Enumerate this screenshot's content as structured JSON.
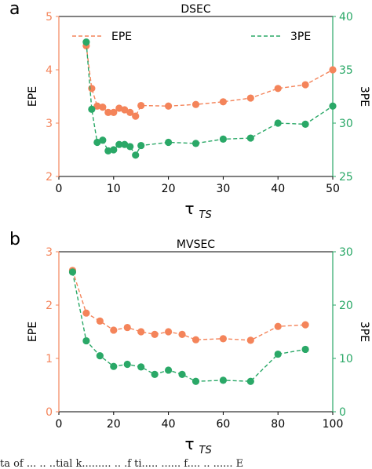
{
  "colors": {
    "epe": "#f4845a",
    "threepe": "#2aa867",
    "axis": "#000000"
  },
  "caption_fragment": "ta of ...  ..  ..tial k.........  ..  .f ti.....  ......  f.... .. ...... E",
  "chart_data": [
    {
      "panel_label": "a",
      "type": "line",
      "title": "DSEC",
      "xlabel_main": "τ",
      "xlabel_sub": "TS",
      "ylabel_left": "EPE",
      "ylabel_right": "3PE",
      "xlim": [
        0,
        50
      ],
      "ylim_left": [
        2,
        5
      ],
      "ylim_right": [
        25,
        40
      ],
      "xticks": [
        0,
        10,
        20,
        30,
        40,
        50
      ],
      "yticks_left": [
        2,
        3,
        4,
        5
      ],
      "yticks_right": [
        25,
        30,
        35,
        40
      ],
      "legend_placement": "top",
      "grid": false,
      "series": [
        {
          "name": "EPE",
          "axis": "left",
          "x": [
            5,
            6,
            7,
            8,
            9,
            10,
            11,
            12,
            13,
            14,
            15,
            20,
            25,
            30,
            35,
            40,
            45,
            50
          ],
          "y": [
            4.45,
            3.65,
            3.32,
            3.3,
            3.2,
            3.2,
            3.28,
            3.25,
            3.2,
            3.13,
            3.33,
            3.32,
            3.35,
            3.4,
            3.47,
            3.65,
            3.72,
            4.0
          ]
        },
        {
          "name": "3PE",
          "axis": "right",
          "x": [
            5,
            6,
            7,
            8,
            9,
            10,
            11,
            12,
            13,
            14,
            15,
            20,
            25,
            30,
            35,
            40,
            45,
            50
          ],
          "y": [
            37.6,
            31.3,
            28.2,
            28.4,
            27.4,
            27.5,
            28.0,
            28.0,
            27.8,
            27.0,
            27.9,
            28.2,
            28.1,
            28.5,
            28.6,
            30.0,
            29.9,
            31.6
          ]
        }
      ]
    },
    {
      "panel_label": "b",
      "type": "line",
      "title": "MVSEC",
      "xlabel_main": "τ",
      "xlabel_sub": "TS",
      "ylabel_left": "EPE",
      "ylabel_right": "3PE",
      "xlim": [
        0,
        100
      ],
      "ylim_left": [
        0,
        3
      ],
      "ylim_right": [
        0,
        30
      ],
      "xticks": [
        0,
        20,
        40,
        60,
        80,
        100
      ],
      "yticks_left": [
        0,
        1,
        2,
        3
      ],
      "yticks_right": [
        0,
        10,
        20,
        30
      ],
      "grid": false,
      "series": [
        {
          "name": "EPE",
          "axis": "left",
          "x": [
            5,
            10,
            15,
            20,
            25,
            30,
            35,
            40,
            45,
            50,
            60,
            70,
            80,
            90
          ],
          "y": [
            2.65,
            1.85,
            1.7,
            1.53,
            1.58,
            1.5,
            1.45,
            1.5,
            1.45,
            1.35,
            1.37,
            1.34,
            1.6,
            1.63
          ]
        },
        {
          "name": "3PE",
          "axis": "right",
          "x": [
            5,
            10,
            15,
            20,
            25,
            30,
            35,
            40,
            45,
            50,
            60,
            70,
            80,
            90
          ],
          "y": [
            26.2,
            13.3,
            10.5,
            8.5,
            8.9,
            8.4,
            7.0,
            7.8,
            7.0,
            5.7,
            5.9,
            5.7,
            10.8,
            11.7
          ]
        }
      ]
    }
  ]
}
